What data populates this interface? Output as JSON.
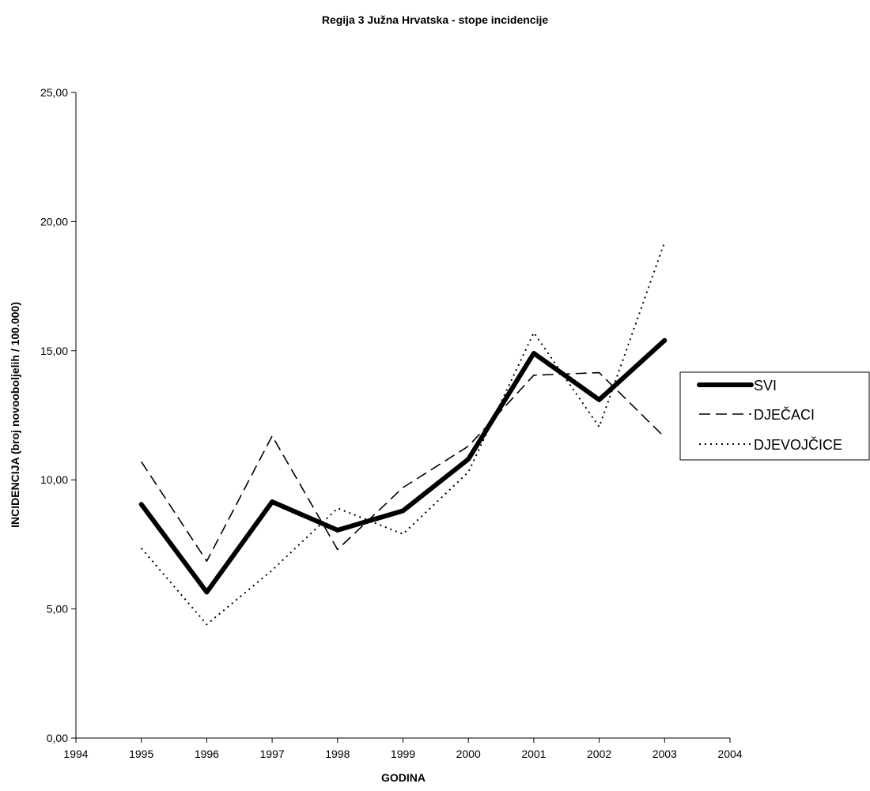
{
  "chart_data": {
    "type": "line",
    "title": "Regija 3 Južna Hrvatska - stope incidencije",
    "xlabel": "GODINA",
    "ylabel": "INCIDENCIJA (broj novooboljelih / 100.000)",
    "xlim": [
      1994,
      2004
    ],
    "ylim": [
      0,
      25
    ],
    "x_ticks": [
      "1994",
      "1995",
      "1996",
      "1997",
      "1998",
      "1999",
      "2000",
      "2001",
      "2002",
      "2003",
      "2004"
    ],
    "y_ticks": [
      "0,00",
      "5,00",
      "10,00",
      "15,00",
      "20,00",
      "25,00"
    ],
    "x": [
      1995,
      1996,
      1997,
      1998,
      1999,
      2000,
      2001,
      2002,
      2003
    ],
    "grid": false,
    "legend_position": "right",
    "series": [
      {
        "name": "SVI",
        "style": "solid-thick",
        "color": "#000000",
        "values": [
          9.05,
          5.65,
          9.15,
          8.05,
          8.8,
          10.8,
          14.9,
          13.1,
          15.4
        ]
      },
      {
        "name": "DJEČACI",
        "style": "dashed",
        "color": "#000000",
        "values": [
          10.7,
          6.85,
          11.7,
          7.3,
          9.7,
          11.3,
          14.05,
          14.15,
          11.65
        ]
      },
      {
        "name": "DJEVOJČICE",
        "style": "dotted",
        "color": "#000000",
        "values": [
          7.35,
          4.4,
          6.5,
          8.9,
          7.9,
          10.3,
          15.7,
          12.05,
          19.2
        ]
      }
    ]
  }
}
